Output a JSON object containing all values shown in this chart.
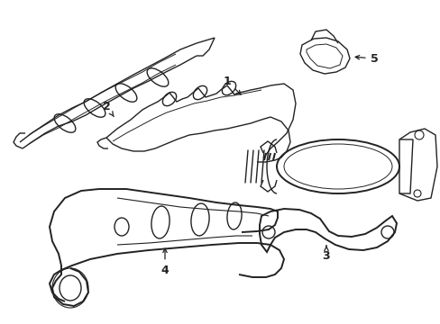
{
  "bg_color": "#ffffff",
  "line_color": "#222222",
  "lw_main": 1.0,
  "lw_thick": 1.4,
  "fig_width": 4.89,
  "fig_height": 3.6,
  "dpi": 100
}
